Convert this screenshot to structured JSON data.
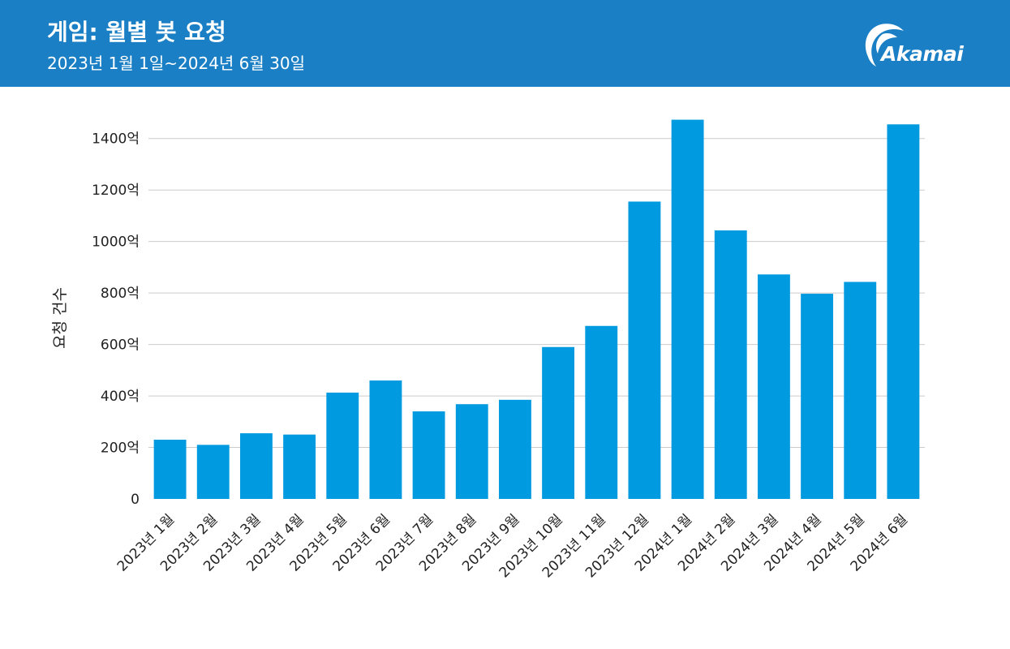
{
  "header": {
    "title": "게임: 월별 봇 요청",
    "subtitle": "2023년 1월 1일~2024년 6월 30일",
    "logo_text": "Akamai",
    "background_color": "#1a7fc4"
  },
  "chart_data": {
    "type": "bar",
    "categories": [
      "2023년 1월",
      "2023년 2월",
      "2023년 3월",
      "2023년 4월",
      "2023년 5월",
      "2023년 6월",
      "2023년 7월",
      "2023년 8월",
      "2023년 9월",
      "2023년 10월",
      "2023년 11월",
      "2023년 12월",
      "2024년 1월",
      "2024년 2월",
      "2024년 3월",
      "2024년 4월",
      "2024년 5월",
      "2024년 6월"
    ],
    "values": [
      230,
      210,
      255,
      250,
      413,
      460,
      340,
      368,
      385,
      590,
      672,
      1155,
      1473,
      1043,
      872,
      797,
      843,
      1455
    ],
    "ylabel": "요청 건수",
    "ylim": [
      0,
      1500
    ],
    "yticks": [
      0,
      200,
      400,
      600,
      800,
      1000,
      1200,
      1400
    ],
    "ytick_labels": [
      "0",
      "200억",
      "400억",
      "600억",
      "800억",
      "1000억",
      "1200억",
      "1400억"
    ],
    "grid": true,
    "bar_color": "#009ae0"
  }
}
